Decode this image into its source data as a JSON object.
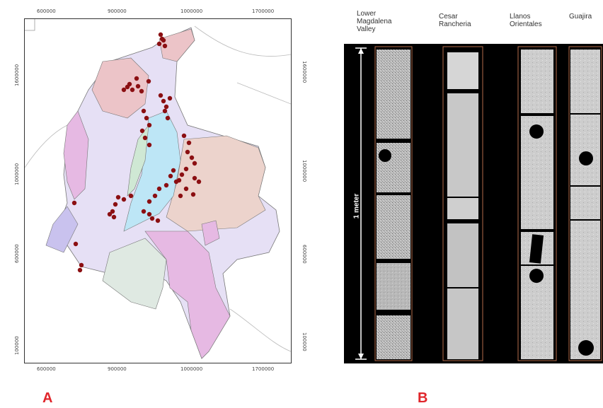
{
  "panel_a": {
    "label": "A",
    "top_ticks": [
      "600000",
      "900000",
      "1000000",
      "1700000"
    ],
    "bottom_ticks": [
      "600000",
      "900000",
      "1000000",
      "1700000"
    ],
    "left_ticks": [
      "1600000",
      "1000000",
      "600000",
      "100000"
    ],
    "right_ticks": [
      "1600000",
      "1000000",
      "600000",
      "100000"
    ]
  },
  "panel_b": {
    "label": "B",
    "columns": [
      {
        "label_line1": "Lower",
        "label_line2": "Magdalena",
        "label_line3": "Valley"
      },
      {
        "label_line1": "Cesar",
        "label_line2": "Rancheria",
        "label_line3": ""
      },
      {
        "label_line1": "Llanos",
        "label_line2": "Orientales",
        "label_line3": ""
      },
      {
        "label_line1": "Guajira",
        "label_line2": "",
        "label_line3": ""
      }
    ],
    "scale_label": "1 meter"
  },
  "colors": {
    "sample_dot": "#8b0f12",
    "panel_label": "#e0262b",
    "region_pink": "#e6b9e3",
    "region_blue": "#bde6f6",
    "region_tan": "#ecd3cc",
    "region_lavender": "#e6e0f5",
    "region_green": "#dfe9e2",
    "region_salmon": "#ecc4c8"
  }
}
